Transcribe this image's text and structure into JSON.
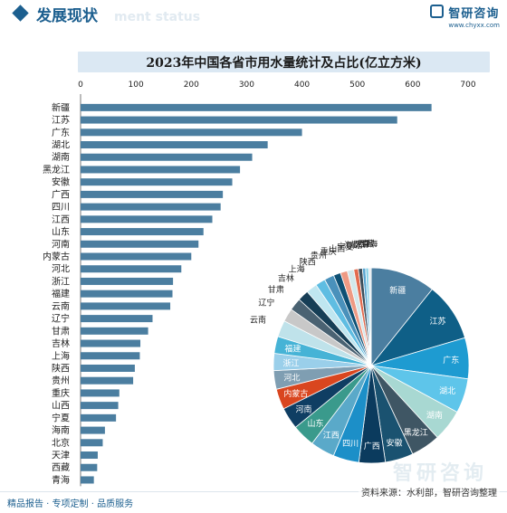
{
  "header": {
    "title": "发展现状",
    "subtitle": "ment status"
  },
  "logo": {
    "name": "智研咨询",
    "url": "www.chyxx.com"
  },
  "chart_title": "2023年中国各省市用水量统计及占比(亿立方米)",
  "footer": {
    "left": "精品报告 · 专项定制 · 品质服务",
    "source": "资料来源：水利部，智研咨询整理"
  },
  "watermark": "智研咨询",
  "colors": {
    "bar": "#4b7ea0",
    "brand": "#1c5f8f",
    "title_bg": "#dbe8f3"
  },
  "chart_data": [
    {
      "type": "bar",
      "orientation": "horizontal",
      "title": "2023年中国各省市用水量统计及占比(亿立方米)",
      "xlim": [
        0,
        700
      ],
      "xticks": [
        0,
        100,
        200,
        300,
        400,
        500,
        600,
        700
      ],
      "grid": false,
      "categories": [
        "新疆",
        "江苏",
        "广东",
        "湖北",
        "湖南",
        "黑龙江",
        "安徽",
        "广西",
        "四川",
        "江西",
        "山东",
        "河南",
        "内蒙古",
        "河北",
        "浙江",
        "福建",
        "云南",
        "辽宁",
        "甘肃",
        "吉林",
        "上海",
        "陕西",
        "贵州",
        "重庆",
        "山西",
        "宁夏",
        "海南",
        "北京",
        "天津",
        "西藏",
        "青海"
      ],
      "values": [
        634,
        572,
        400,
        338,
        310,
        288,
        274,
        257,
        253,
        238,
        222,
        213,
        200,
        182,
        167,
        166,
        162,
        130,
        122,
        108,
        107,
        98,
        95,
        70,
        68,
        64,
        44,
        40,
        31,
        30,
        24
      ]
    },
    {
      "type": "pie",
      "legend": "none",
      "categories": [
        "新疆",
        "江苏",
        "广东",
        "湖北",
        "湖南",
        "黑龙江",
        "安徽",
        "广西",
        "四川",
        "江西",
        "山东",
        "河南",
        "内蒙古",
        "河北",
        "浙江",
        "福建",
        "云南",
        "辽宁",
        "甘肃",
        "吉林",
        "上海",
        "陕西",
        "贵州",
        "重庆",
        "山西",
        "宁夏",
        "海南",
        "北京",
        "天津",
        "西藏",
        "青海"
      ],
      "values": [
        634,
        572,
        400,
        338,
        310,
        288,
        274,
        257,
        253,
        238,
        222,
        213,
        200,
        182,
        167,
        166,
        162,
        130,
        122,
        108,
        107,
        98,
        95,
        70,
        68,
        64,
        44,
        40,
        31,
        30,
        24
      ],
      "colors": [
        "#4b7ea0",
        "#0f5f87",
        "#1e9bd1",
        "#5ec5ea",
        "#a8d8d2",
        "#3f5664",
        "#1a5270",
        "#0b3b5e",
        "#1c8fc8",
        "#5aa9c9",
        "#3a9a8c",
        "#0f3e63",
        "#d9461f",
        "#7f9eb2",
        "#9acfea",
        "#46b3d6",
        "#bfe2ea",
        "#c8c8c8",
        "#4a6272",
        "#163e56",
        "#bfe6f0",
        "#5fbde2",
        "#4a91bb",
        "#0e5074",
        "#ee9a84",
        "#d2e8ec",
        "#e26b4f",
        "#3d4f5c",
        "#5aa6d2",
        "#8fd3e8",
        "#e3e8ec"
      ]
    }
  ]
}
